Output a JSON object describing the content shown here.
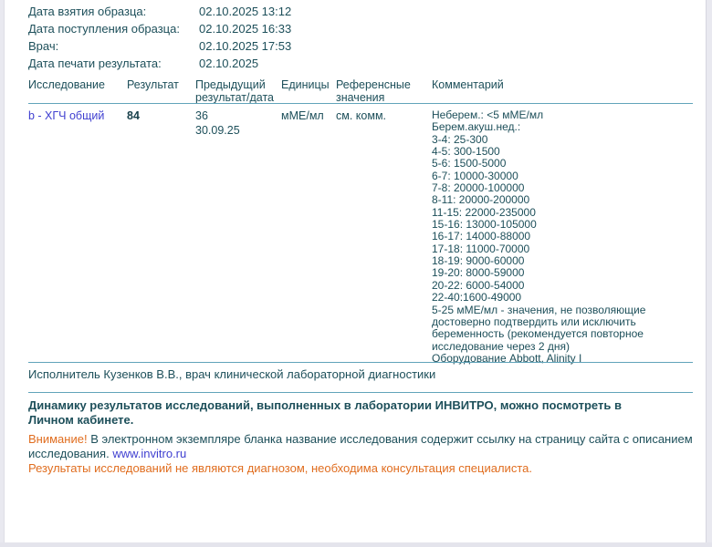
{
  "info_rows": [
    {
      "label": "Дата взятия образца:",
      "value": "02.10.2025 13:12"
    },
    {
      "label": "Дата поступления образца:",
      "value": "02.10.2025 16:33"
    },
    {
      "label": "Врач:",
      "value": "02.10.2025 17:53"
    },
    {
      "label": "Дата печати результата:",
      "value": "02.10.2025"
    }
  ],
  "table": {
    "columns": [
      {
        "label1": "Исследование",
        "label2": ""
      },
      {
        "label1": "Результат",
        "label2": ""
      },
      {
        "label1": "Предыдущий",
        "label2": "результат/дата"
      },
      {
        "label1": "Единицы",
        "label2": ""
      },
      {
        "label1": "Референсные",
        "label2": "значения"
      },
      {
        "label1": "Комментарий",
        "label2": ""
      }
    ],
    "row": {
      "test_name": "b - ХГЧ общий",
      "result": "84",
      "previous_result": "36",
      "previous_date": "30.09.25",
      "units": "мМЕ/мл",
      "reference": "см. комм.",
      "comment_lines": [
        "Неберем.: <5 мМЕ/мл",
        "Берем.акуш.нед.:",
        "3-4: 25-300",
        "4-5: 300-1500",
        "5-6: 1500-5000",
        "6-7: 10000-30000",
        "7-8: 20000-100000",
        "8-11: 20000-200000",
        "11-15: 22000-235000",
        "15-16: 13000-105000",
        "16-17: 14000-88000",
        "17-18: 11000-70000",
        "18-19: 9000-60000",
        "19-20: 8000-59000",
        "20-22: 6000-54000",
        "22-40:1600-49000",
        "5-25 мМЕ/мл - значения, не позволяющие",
        "достоверно подтвердить или исключить",
        "беременность (рекомендуется повторное",
        "исследование через 2 дня)",
        "Оборудование Abbott, Alinity I"
      ]
    }
  },
  "executor": "Исполнитель Кузенков В.В., врач клинической лабораторной диагностики",
  "dynamics": {
    "line1": "Динамику результатов исследований, выполненных в лаборатории ИНВИТРО, можно посмотреть в",
    "line2": "Личном кабинете."
  },
  "attention": {
    "label": "Внимание!",
    "text_line1": "В электронном экземпляре бланка название исследования содержит ссылку на страницу сайта с описанием",
    "text_line2": "исследования.",
    "link": "www.invitro.ru"
  },
  "disclaimer": "Результаты исследований не являются диагнозом, необходима консультация специалиста.",
  "colors": {
    "text": "#1d4f5a",
    "rule_teal": "#61a4ba",
    "link_blue": "#3f3fd0",
    "accent_orange": "#e06d1f",
    "page_background": "#ffffff",
    "viewer_background": "#e9e9f0"
  }
}
